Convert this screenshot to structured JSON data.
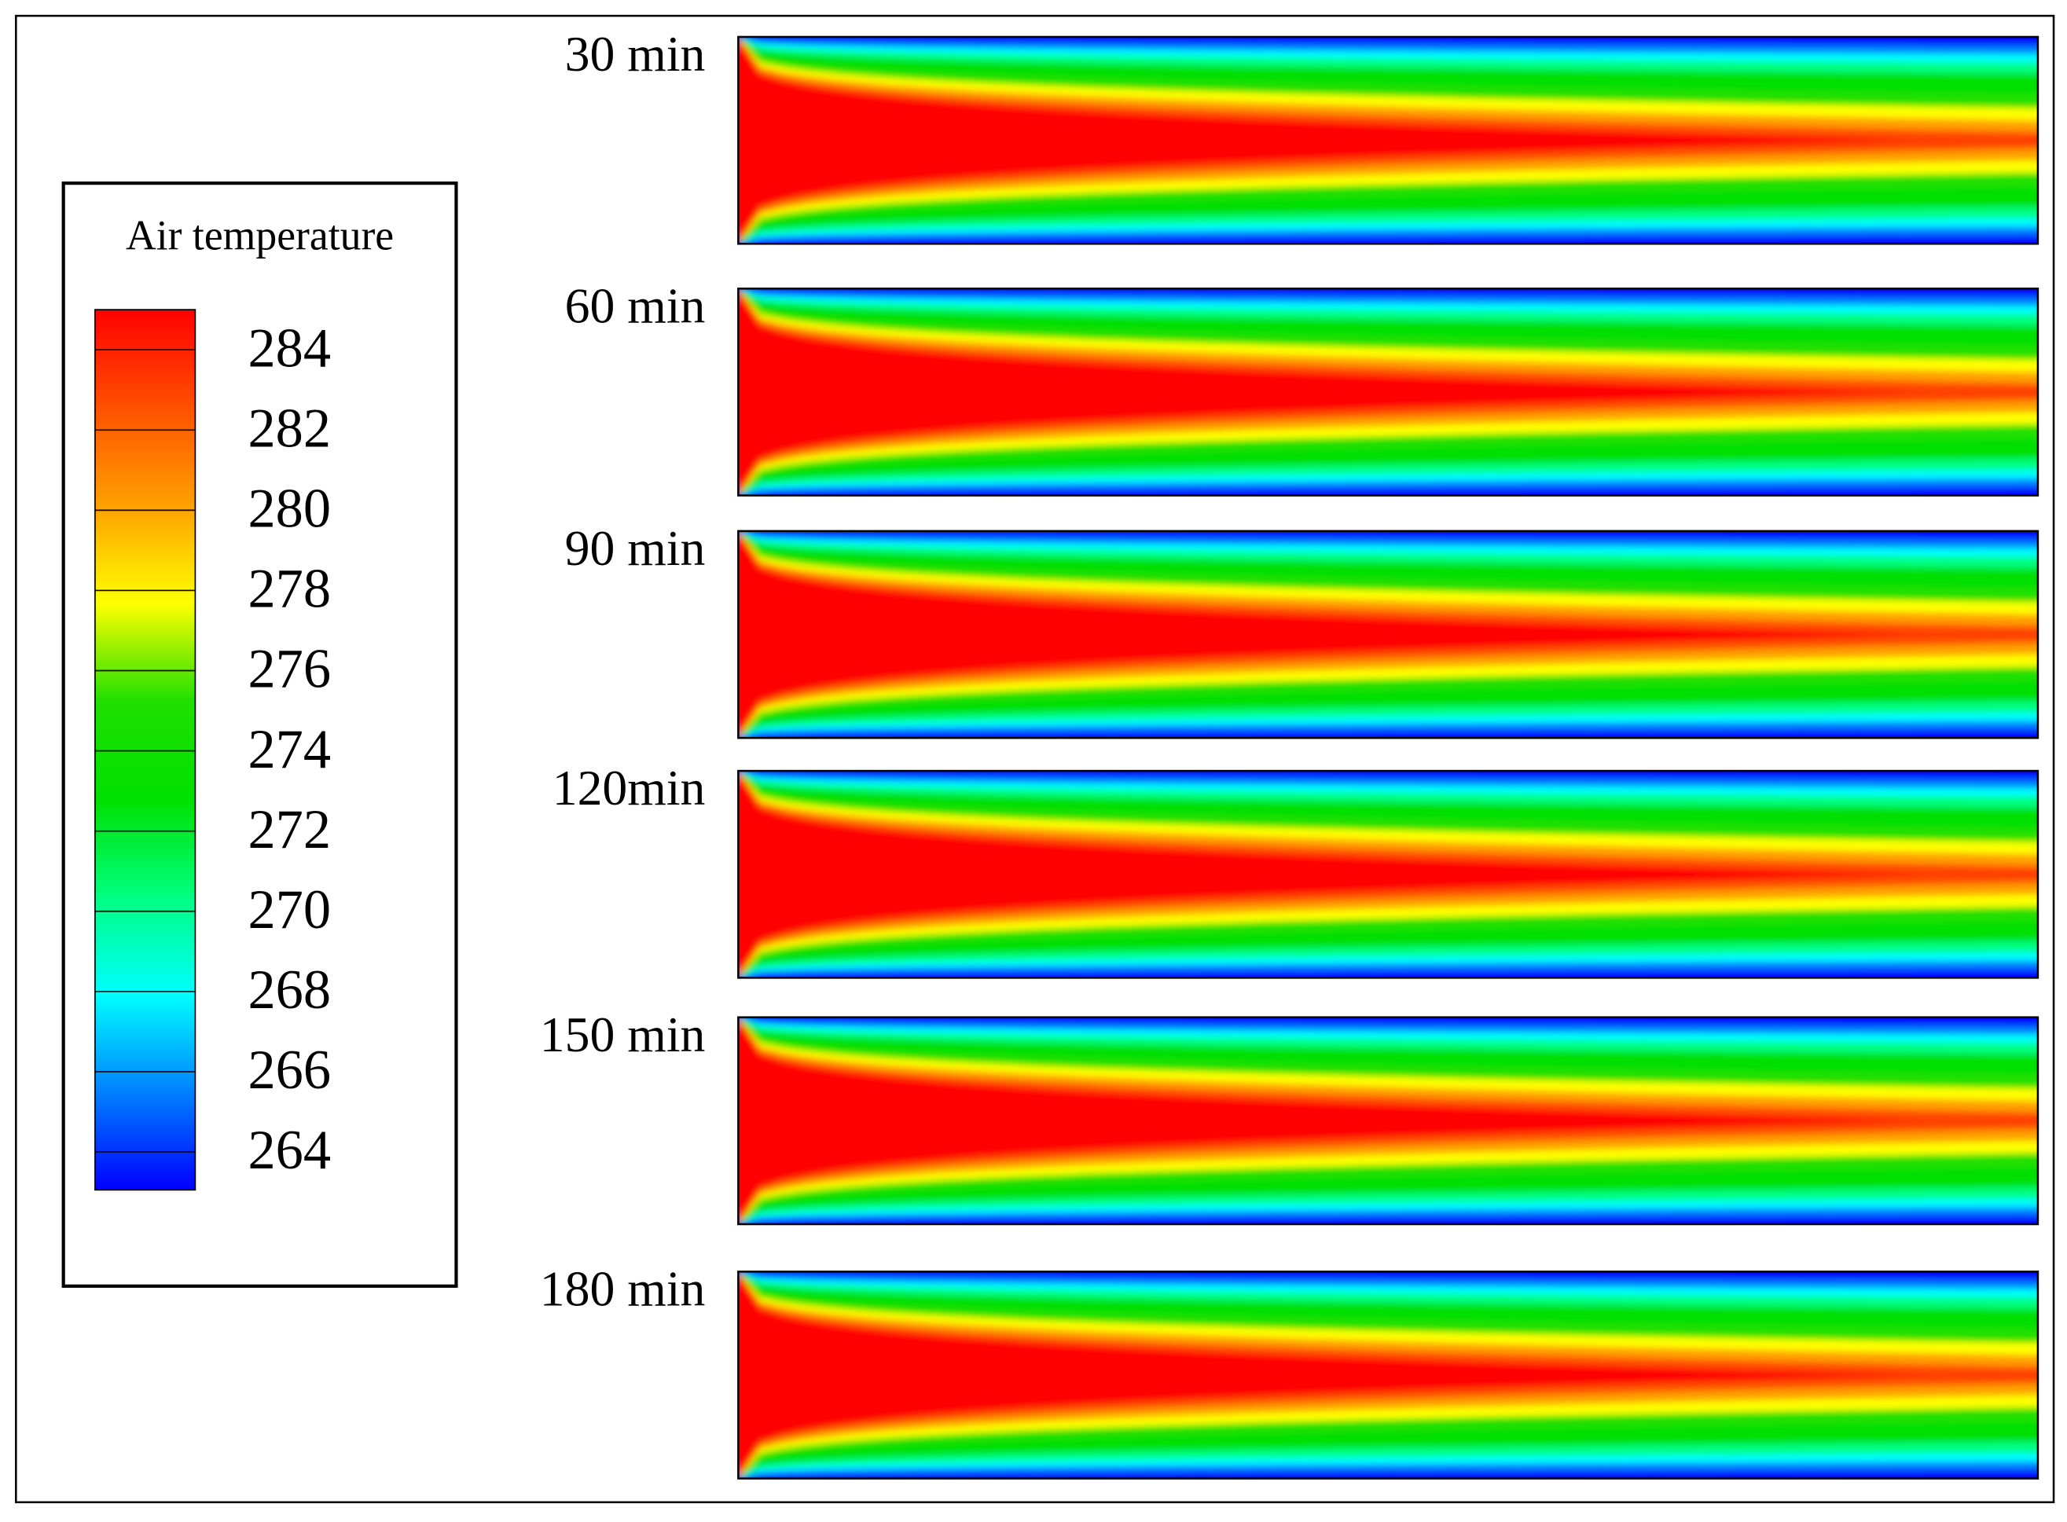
{
  "chart_data": {
    "type": "contour",
    "colorbar": {
      "title": "Air temperature",
      "lim": [
        263.15,
        285.1
      ],
      "ticks": [
        284,
        282,
        280,
        278,
        276,
        274,
        272,
        270,
        268,
        266,
        264
      ]
    },
    "colormap": [
      "#0000ff",
      "#0080ff",
      "#00ffff",
      "#00ff80",
      "#00e000",
      "#20e000",
      "#ffff00",
      "#ffa000",
      "#ff5000",
      "#ff0000"
    ],
    "panels": [
      "30 min",
      "60 min",
      "90 min",
      "120min",
      "150 min",
      "180 min"
    ]
  }
}
